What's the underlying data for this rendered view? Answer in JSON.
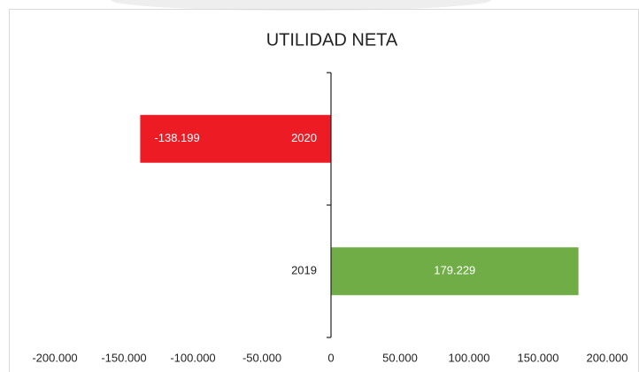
{
  "chart_data": {
    "type": "barh",
    "title": "UTILIDAD NETA",
    "categories": [
      "2020",
      "2019"
    ],
    "values": [
      -138199,
      179229
    ],
    "value_labels": [
      "-138.199",
      "179.229"
    ],
    "colors": [
      "#ed1c24",
      "#70ad47"
    ],
    "xlim": [
      -200000,
      200000
    ],
    "xticks": [
      {
        "value": -200000,
        "label": "-200.000"
      },
      {
        "value": -150000,
        "label": "-150.000"
      },
      {
        "value": -100000,
        "label": "-100.000"
      },
      {
        "value": -50000,
        "label": "-50.000"
      },
      0,
      {
        "value": 50000,
        "label": "50.000"
      },
      {
        "value": 100000,
        "label": "100.000"
      },
      {
        "value": 150000,
        "label": "150.000"
      },
      {
        "value": 200000,
        "label": "200.000"
      }
    ],
    "grid": false
  }
}
